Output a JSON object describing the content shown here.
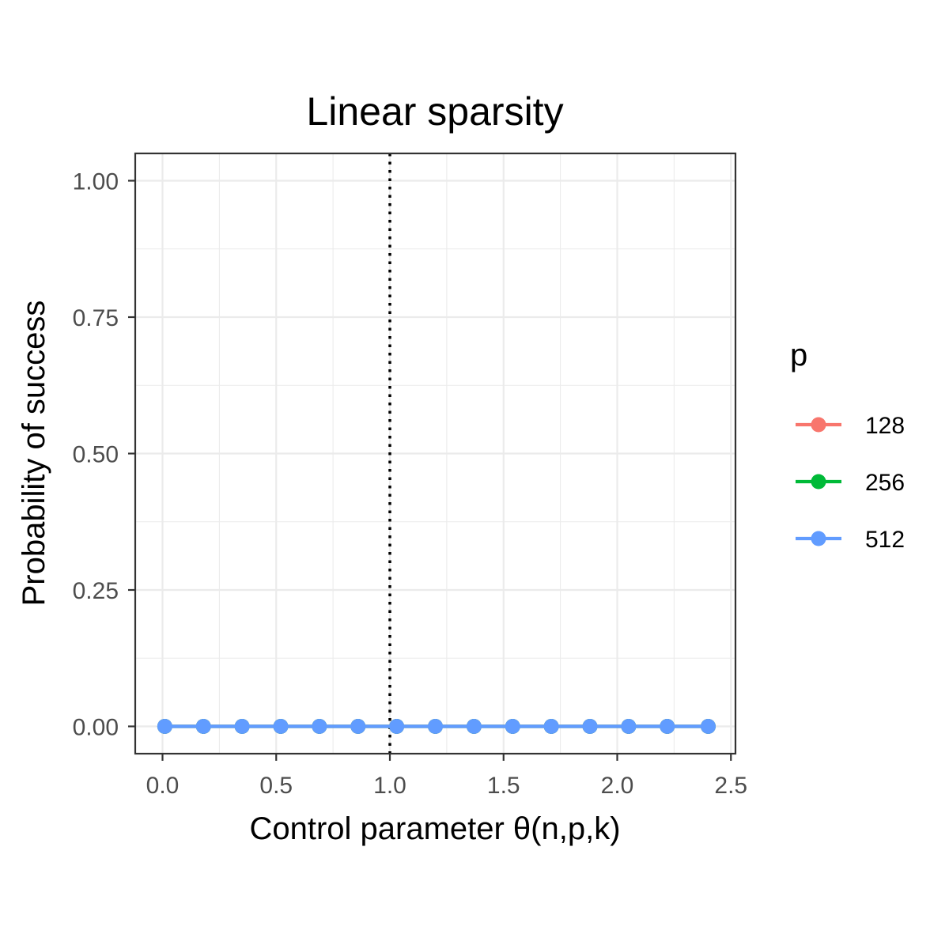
{
  "chart_data": {
    "type": "line",
    "title": "Linear sparsity",
    "xlabel": "Control parameter θ(n,p,k)",
    "ylabel": "Probability of success",
    "xlim": [
      -0.12,
      2.52
    ],
    "ylim": [
      -0.05,
      1.05
    ],
    "x_ticks": [
      0.0,
      0.5,
      1.0,
      1.5,
      2.0,
      2.5
    ],
    "x_tick_labels": [
      "0.0",
      "0.5",
      "1.0",
      "1.5",
      "2.0",
      "2.5"
    ],
    "y_ticks": [
      0.0,
      0.25,
      0.5,
      0.75,
      1.0
    ],
    "y_tick_labels": [
      "0.00",
      "0.25",
      "0.50",
      "0.75",
      "1.00"
    ],
    "grid": true,
    "vline": {
      "x": 1.0,
      "style": "dotted",
      "color": "#000000"
    },
    "legend": {
      "title": "p",
      "position": "right"
    },
    "x": [
      0.01,
      0.18,
      0.35,
      0.52,
      0.69,
      0.86,
      1.03,
      1.2,
      1.37,
      1.54,
      1.71,
      1.88,
      2.05,
      2.22,
      2.4
    ],
    "series": [
      {
        "name": "128",
        "color": "#F8766D",
        "values": [
          0,
          0,
          0,
          0,
          0,
          0,
          0,
          0,
          0,
          0,
          0,
          0,
          0,
          0,
          0
        ]
      },
      {
        "name": "256",
        "color": "#00BA38",
        "values": [
          0,
          0,
          0,
          0,
          0,
          0,
          0,
          0,
          0,
          0,
          0,
          0,
          0,
          0,
          0
        ]
      },
      {
        "name": "512",
        "color": "#619CFF",
        "values": [
          0,
          0,
          0,
          0,
          0,
          0,
          0,
          0,
          0,
          0,
          0,
          0,
          0,
          0,
          0
        ]
      }
    ]
  }
}
